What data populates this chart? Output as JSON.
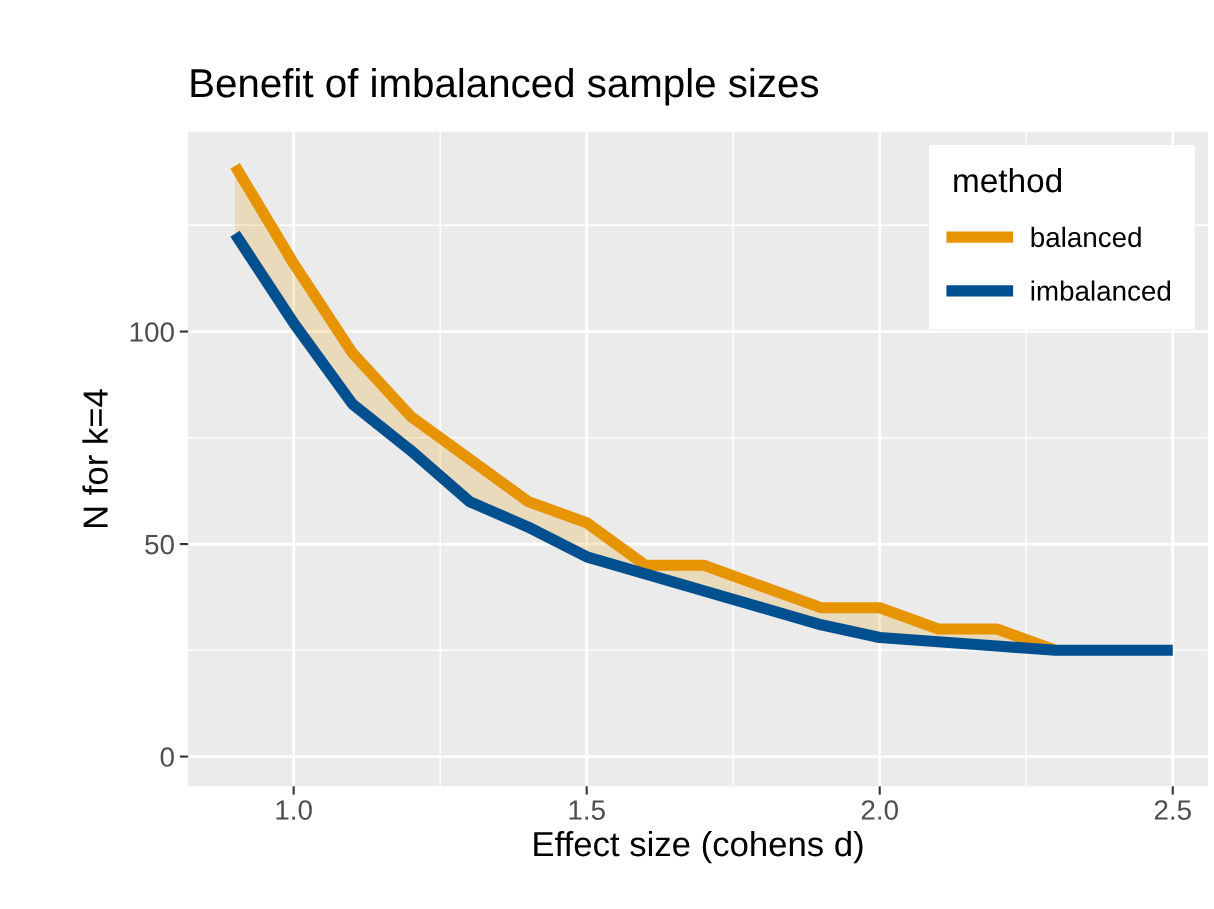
{
  "chart_data": {
    "type": "line",
    "title": "Benefit of imbalanced sample sizes",
    "xlabel": "Effect size (cohens d)",
    "ylabel": "N for k=4",
    "legend_title": "method",
    "x": [
      0.9,
      1.0,
      1.1,
      1.2,
      1.3,
      1.4,
      1.5,
      1.6,
      1.7,
      1.8,
      1.9,
      2.0,
      2.1,
      2.2,
      2.3,
      2.4,
      2.5
    ],
    "series": [
      {
        "name": "balanced",
        "color": "#e69500",
        "values": [
          139,
          116,
          95,
          80,
          70,
          60,
          55,
          45,
          45,
          40,
          35,
          35,
          30,
          30,
          25,
          null,
          null
        ],
        "lower": [
          123,
          102,
          83,
          72,
          60,
          54,
          47,
          43,
          39,
          35,
          31,
          28,
          27,
          26,
          25,
          25,
          25
        ],
        "upper": [
          139,
          116,
          95,
          80,
          70,
          60,
          55,
          45,
          45,
          40,
          35,
          35,
          30,
          30,
          25,
          25,
          25
        ]
      },
      {
        "name": "imbalanced",
        "color": "#00508f",
        "values": [
          123,
          102,
          83,
          72,
          60,
          54,
          47,
          43,
          39,
          35,
          31,
          28,
          27,
          26,
          25,
          25,
          25
        ]
      }
    ],
    "xlim": [
      0.82,
      2.56
    ],
    "ylim": [
      -7,
      147
    ],
    "xticks": [
      {
        "value": 1.0,
        "label": "1.0"
      },
      {
        "value": 1.5,
        "label": "1.5"
      },
      {
        "value": 2.0,
        "label": "2.0"
      },
      {
        "value": 2.5,
        "label": "2.5"
      }
    ],
    "yticks": [
      0,
      50,
      100
    ],
    "grid": true,
    "legend": "top right",
    "line_style": "solid",
    "marker": "none"
  }
}
